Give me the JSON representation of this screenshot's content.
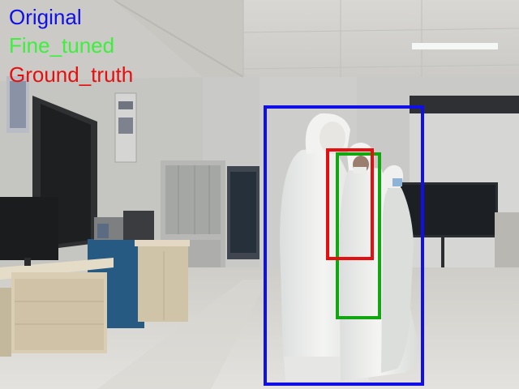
{
  "legend": {
    "original_label": "Original",
    "fine_tuned_label": "Fine_tuned",
    "ground_truth_label": "Ground_truth"
  },
  "colors": {
    "original": "#1010e6",
    "fine_tuned": "#13a613",
    "ground_truth": "#e60f0f",
    "fine_tuned_text": "#3cf03c"
  },
  "detections": [
    {
      "label_ref": "original"
    },
    {
      "label_ref": "fine_tuned"
    },
    {
      "label_ref": "ground_truth"
    }
  ]
}
